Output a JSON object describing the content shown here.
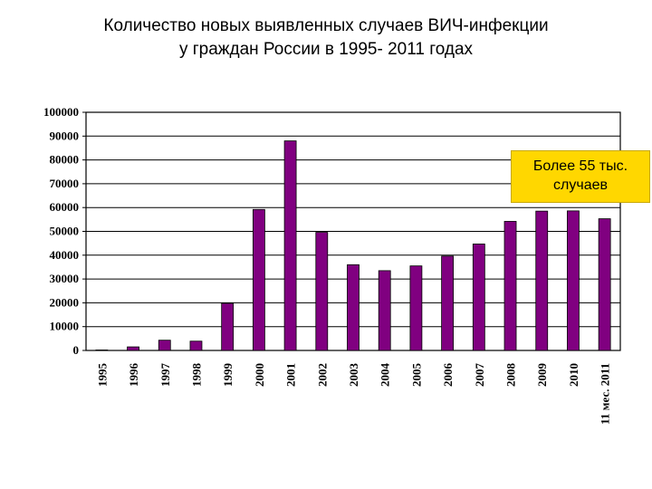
{
  "title": {
    "line1": "Количество новых выявленных случаев ВИЧ-инфекции",
    "line2": "у граждан России в 1995- 2011 годах"
  },
  "annotation": {
    "line1": "Более 55 тыс.",
    "line2": "случаев"
  },
  "colors": {
    "bar": "#800080",
    "grid": "#000000",
    "annotation_bg": "#ffd700"
  },
  "chart_data": {
    "type": "bar",
    "categories": [
      "1995",
      "1996",
      "1997",
      "1998",
      "1999",
      "2000",
      "2001",
      "2002",
      "2003",
      "2004",
      "2005",
      "2006",
      "2007",
      "2008",
      "2009",
      "2010",
      "11 мес. 2011"
    ],
    "values": [
      200,
      1500,
      4300,
      3900,
      19800,
      59200,
      88000,
      49600,
      36000,
      33500,
      35500,
      39600,
      44700,
      54200,
      58500,
      58600,
      55300
    ],
    "ylim": [
      0,
      100000
    ],
    "yticks": [
      "0",
      "10000",
      "20000",
      "30000",
      "40000",
      "50000",
      "60000",
      "70000",
      "80000",
      "90000",
      "100000"
    ],
    "grid": true,
    "xlabel": "",
    "ylabel": ""
  }
}
